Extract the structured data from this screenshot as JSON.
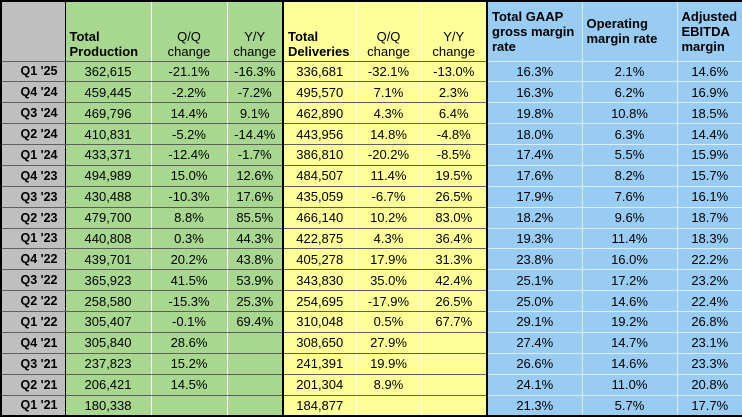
{
  "colors": {
    "green": "#A8D88F",
    "yellow": "#FFFF99",
    "blue": "#99CCF2",
    "gray": "#BFBFBF"
  },
  "table": {
    "corner_label": "",
    "header": {
      "production": "Total\nProduction",
      "deliveries": "Total\nDeliveries",
      "qq_change": "Q/Q\nchange",
      "yy_change": "Y/Y\nchange",
      "gaap": "Total GAAP\ngross margin\nrate",
      "operating": "Operating\nmargin rate",
      "ebitda": "Adjusted\nEBITDA\nmargin"
    },
    "rows": [
      {
        "label": "Q1 '25",
        "cells": [
          "362,615",
          "-21.1%",
          "-16.3%",
          "336,681",
          "-32.1%",
          "-13.0%",
          "16.3%",
          "2.1%",
          "14.6%"
        ]
      },
      {
        "label": "Q4 '24",
        "cells": [
          "459,445",
          "-2.2%",
          "-7.2%",
          "495,570",
          "7.1%",
          "2.3%",
          "16.3%",
          "6.2%",
          "16.9%"
        ]
      },
      {
        "label": "Q3 '24",
        "cells": [
          "469,796",
          "14.4%",
          "9.1%",
          "462,890",
          "4.3%",
          "6.4%",
          "19.8%",
          "10.8%",
          "18.5%"
        ]
      },
      {
        "label": "Q2 '24",
        "cells": [
          "410,831",
          "-5.2%",
          "-14.4%",
          "443,956",
          "14.8%",
          "-4.8%",
          "18.0%",
          "6.3%",
          "14.4%"
        ]
      },
      {
        "label": "Q1 '24",
        "cells": [
          "433,371",
          "-12.4%",
          "-1.7%",
          "386,810",
          "-20.2%",
          "-8.5%",
          "17.4%",
          "5.5%",
          "15.9%"
        ]
      },
      {
        "label": "Q4 '23",
        "cells": [
          "494,989",
          "15.0%",
          "12.6%",
          "484,507",
          "11.4%",
          "19.5%",
          "17.6%",
          "8.2%",
          "15.7%"
        ]
      },
      {
        "label": "Q3 '23",
        "cells": [
          "430,488",
          "-10.3%",
          "17.6%",
          "435,059",
          "-6.7%",
          "26.5%",
          "17.9%",
          "7.6%",
          "16.1%"
        ]
      },
      {
        "label": "Q2 '23",
        "cells": [
          "479,700",
          "8.8%",
          "85.5%",
          "466,140",
          "10.2%",
          "83.0%",
          "18.2%",
          "9.6%",
          "18.7%"
        ]
      },
      {
        "label": "Q1 '23",
        "cells": [
          "440,808",
          "0.3%",
          "44.3%",
          "422,875",
          "4.3%",
          "36.4%",
          "19.3%",
          "11.4%",
          "18.3%"
        ]
      },
      {
        "label": "Q4 '22",
        "cells": [
          "439,701",
          "20.2%",
          "43.8%",
          "405,278",
          "17.9%",
          "31.3%",
          "23.8%",
          "16.0%",
          "22.2%"
        ]
      },
      {
        "label": "Q3 '22",
        "cells": [
          "365,923",
          "41.5%",
          "53.9%",
          "343,830",
          "35.0%",
          "42.4%",
          "25.1%",
          "17.2%",
          "23.2%"
        ]
      },
      {
        "label": "Q2 '22",
        "cells": [
          "258,580",
          "-15.3%",
          "25.3%",
          "254,695",
          "-17.9%",
          "26.5%",
          "25.0%",
          "14.6%",
          "22.4%"
        ]
      },
      {
        "label": "Q1 '22",
        "cells": [
          "305,407",
          "-0.1%",
          "69.4%",
          "310,048",
          "0.5%",
          "67.7%",
          "29.1%",
          "19.2%",
          "26.8%"
        ]
      },
      {
        "label": "Q4 '21",
        "cells": [
          "305,840",
          "28.6%",
          "",
          "308,650",
          "27.9%",
          "",
          "27.4%",
          "14.7%",
          "23.1%"
        ]
      },
      {
        "label": "Q3 '21",
        "cells": [
          "237,823",
          "15.2%",
          "",
          "241,391",
          "19.9%",
          "",
          "26.6%",
          "14.6%",
          "23.3%"
        ]
      },
      {
        "label": "Q2 '21",
        "cells": [
          "206,421",
          "14.5%",
          "",
          "201,304",
          "8.9%",
          "",
          "24.1%",
          "11.0%",
          "20.8%"
        ]
      },
      {
        "label": "Q1 '21",
        "cells": [
          "180,338",
          "",
          "",
          "184,877",
          "",
          "",
          "21.3%",
          "5.7%",
          "17.7%"
        ]
      }
    ]
  }
}
